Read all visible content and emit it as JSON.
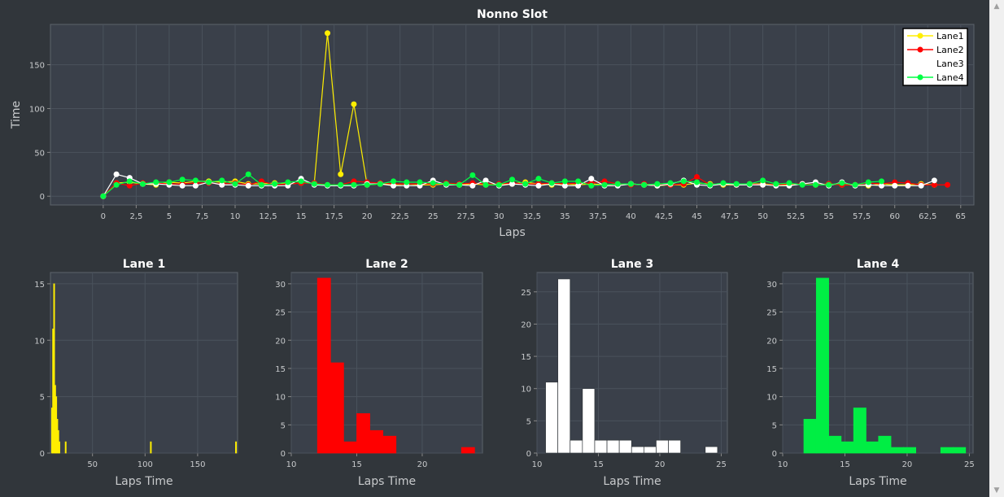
{
  "chart_data": [
    {
      "type": "line",
      "title": "Nonno Slot",
      "xlabel": "Laps",
      "ylabel": "Time",
      "xlim": [
        -4,
        66
      ],
      "ylim": [
        -10,
        196
      ],
      "xticks": [
        0,
        2.5,
        5,
        7.5,
        10,
        12.5,
        15,
        17.5,
        20,
        22.5,
        25,
        27.5,
        30,
        32.5,
        35,
        37.5,
        40,
        42.5,
        45,
        47.5,
        50,
        52.5,
        55,
        57.5,
        60,
        62.5,
        65
      ],
      "xtick_labels": [
        "0",
        "2,5",
        "5",
        "7,5",
        "10",
        "12,5",
        "15",
        "17,5",
        "20",
        "22,5",
        "25",
        "27,5",
        "30",
        "32,5",
        "35",
        "37,5",
        "40",
        "42,5",
        "45",
        "47,5",
        "50",
        "52,5",
        "55",
        "57,5",
        "60",
        "62,5",
        "65"
      ],
      "yticks": [
        0,
        50,
        100,
        150
      ],
      "grid": true,
      "legend_position": "top-right",
      "series": [
        {
          "name": "Lane1",
          "color": "#ffee00",
          "values": [
            0,
            15,
            16,
            14,
            13,
            16,
            15,
            17,
            17,
            16,
            17,
            14,
            14,
            15,
            14,
            15,
            15,
            186,
            25,
            105,
            13,
            14,
            13,
            14,
            13,
            13,
            14,
            13,
            14,
            13,
            13,
            14,
            16,
            14,
            13,
            14,
            13,
            14,
            13,
            14,
            14,
            13,
            12,
            13,
            13,
            15,
            14,
            13,
            13,
            14,
            14,
            13,
            13,
            14,
            13,
            14,
            13,
            13,
            12,
            14,
            13,
            13,
            14,
            13
          ]
        },
        {
          "name": "Lane2",
          "color": "#ff0000",
          "values": [
            0,
            15,
            12,
            15,
            15,
            14,
            14,
            15,
            15,
            14,
            15,
            13,
            17,
            13,
            14,
            15,
            15,
            13,
            13,
            17,
            16,
            15,
            14,
            14,
            14,
            14,
            15,
            14,
            15,
            14,
            14,
            15,
            14,
            14,
            15,
            14,
            15,
            15,
            17,
            14,
            13,
            14,
            13,
            13,
            14,
            22,
            13,
            14,
            13,
            14,
            13,
            13,
            14,
            14,
            13,
            14,
            13,
            13,
            15,
            14,
            16,
            15,
            13,
            13,
            13
          ]
        },
        {
          "name": "Lane3",
          "color": "#ffffff",
          "values": [
            0,
            25,
            21,
            14,
            14,
            13,
            12,
            12,
            16,
            13,
            13,
            12,
            12,
            12,
            12,
            20,
            13,
            12,
            12,
            12,
            14,
            14,
            12,
            12,
            12,
            18,
            13,
            13,
            12,
            18,
            12,
            14,
            13,
            12,
            14,
            12,
            12,
            20,
            12,
            12,
            14,
            13,
            12,
            14,
            18,
            13,
            12,
            14,
            13,
            13,
            13,
            12,
            12,
            14,
            16,
            12,
            16,
            12,
            13,
            12,
            12,
            12,
            12,
            18
          ]
        },
        {
          "name": "Lane4",
          "color": "#00ff44",
          "values": [
            0,
            13,
            17,
            14,
            16,
            16,
            19,
            18,
            16,
            18,
            14,
            25,
            13,
            14,
            16,
            17,
            14,
            13,
            13,
            13,
            13,
            14,
            17,
            16,
            16,
            15,
            14,
            13,
            24,
            13,
            13,
            19,
            14,
            20,
            15,
            17,
            17,
            12,
            13,
            14,
            14,
            13,
            14,
            15,
            17,
            16,
            13,
            15,
            14,
            14,
            18,
            14,
            15,
            13,
            13,
            13,
            15,
            13,
            16,
            17
          ]
        }
      ]
    },
    {
      "type": "histogram",
      "title": "Lane 1",
      "xlabel": "Laps Time",
      "color": "#ffee00",
      "xlim": [
        10,
        188
      ],
      "ylim": [
        0,
        16
      ],
      "xticks": [
        50,
        100,
        150
      ],
      "yticks": [
        0,
        5,
        10,
        15
      ],
      "bins": [
        [
          11,
          12,
          4
        ],
        [
          12,
          13,
          11
        ],
        [
          13,
          14,
          15
        ],
        [
          14,
          15,
          6
        ],
        [
          15,
          16,
          5
        ],
        [
          16,
          17,
          3
        ],
        [
          17,
          18,
          2
        ],
        [
          18,
          19,
          1
        ],
        [
          24,
          25,
          1
        ],
        [
          105,
          106,
          1
        ],
        [
          186,
          187,
          1
        ]
      ]
    },
    {
      "type": "histogram",
      "title": "Lane 2",
      "xlabel": "Laps Time",
      "color": "#ff0000",
      "xlim": [
        10,
        24.6
      ],
      "ylim": [
        0,
        32
      ],
      "xticks": [
        10,
        15,
        20
      ],
      "yticks": [
        0,
        5,
        10,
        15,
        20,
        25,
        30
      ],
      "bins": [
        [
          12,
          13,
          31
        ],
        [
          13,
          14,
          16
        ],
        [
          14,
          15,
          2
        ],
        [
          15,
          16,
          7
        ],
        [
          16,
          17,
          4
        ],
        [
          17,
          18,
          3
        ],
        [
          23,
          24,
          1
        ]
      ]
    },
    {
      "type": "histogram",
      "title": "Lane 3",
      "xlabel": "Laps Time",
      "color": "#ffffff",
      "xlim": [
        10,
        25.5
      ],
      "ylim": [
        0,
        28
      ],
      "xticks": [
        10,
        15,
        20,
        25
      ],
      "yticks": [
        0,
        5,
        10,
        15,
        20,
        25
      ],
      "bins": [
        [
          10.7,
          11.7,
          11
        ],
        [
          11.7,
          12.7,
          27
        ],
        [
          12.7,
          13.7,
          2
        ],
        [
          13.7,
          14.7,
          10
        ],
        [
          14.7,
          15.7,
          2
        ],
        [
          15.7,
          16.7,
          2
        ],
        [
          16.7,
          17.7,
          2
        ],
        [
          17.7,
          18.7,
          1
        ],
        [
          18.7,
          19.7,
          1
        ],
        [
          19.7,
          20.7,
          2
        ],
        [
          20.7,
          21.7,
          2
        ],
        [
          23.7,
          24.7,
          1
        ]
      ]
    },
    {
      "type": "histogram",
      "title": "Lane 4",
      "xlabel": "Laps Time",
      "color": "#00ee44",
      "xlim": [
        10,
        25.3
      ],
      "ylim": [
        0,
        32
      ],
      "xticks": [
        10,
        15,
        20,
        25
      ],
      "yticks": [
        0,
        5,
        10,
        15,
        20,
        25,
        30
      ],
      "bins": [
        [
          11.7,
          12.7,
          6
        ],
        [
          12.7,
          13.7,
          31
        ],
        [
          13.7,
          14.7,
          3
        ],
        [
          14.7,
          15.7,
          2
        ],
        [
          15.7,
          16.7,
          8
        ],
        [
          16.7,
          17.7,
          2
        ],
        [
          17.7,
          18.7,
          3
        ],
        [
          18.7,
          19.7,
          1
        ],
        [
          19.7,
          20.7,
          1
        ],
        [
          22.7,
          23.7,
          1
        ],
        [
          23.7,
          24.7,
          1
        ]
      ]
    }
  ]
}
